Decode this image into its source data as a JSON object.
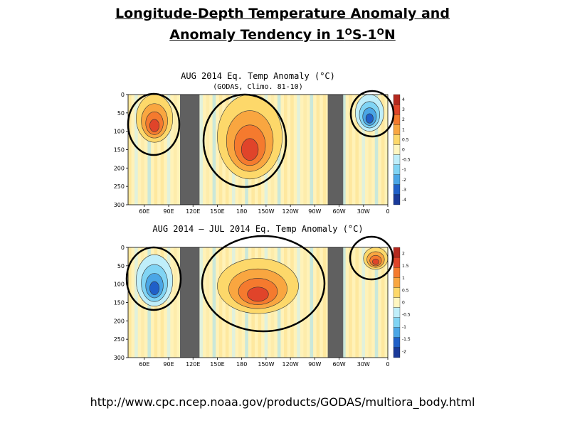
{
  "slide": {
    "title_line1": "Longitude-Depth Temperature Anomaly and",
    "title_line2_pre": "Anomaly Tendency in 1",
    "title_sup1": "O",
    "title_mid": "S-1",
    "title_sup2": "O",
    "title_post": "N",
    "source_url": "http://www.cpc.ncep.noaa.gov/products/GODAS/multiora_body.html"
  },
  "chart_data": [
    {
      "type": "heatmap",
      "title": "AUG 2014 Eq. Temp Anomaly (°C)",
      "subtitle": "(GODAS, Climo. 81-10)",
      "x_tick_labels": [
        "60E",
        "90E",
        "120E",
        "150E",
        "180",
        "150W",
        "120W",
        "90W",
        "60W",
        "30W",
        "0"
      ],
      "y_tick_labels": [
        "0",
        "50",
        "100",
        "150",
        "200",
        "250",
        "300"
      ],
      "ylim": [
        300,
        0
      ],
      "colorbar_labels": [
        "4",
        "3",
        "2",
        "1",
        "0.5",
        "0",
        "-0.5",
        "-1",
        "-2",
        "-3",
        "-4"
      ],
      "colorbar_colors": [
        "#b4281e",
        "#e0442a",
        "#f57a2e",
        "#f9a640",
        "#fdd86a",
        "#fff6c0",
        "#bfeefa",
        "#80d4f4",
        "#4aa6e6",
        "#2060c8",
        "#1a3a9a"
      ],
      "land_bands": [
        [
          104,
          128
        ],
        [
          286,
          305
        ]
      ],
      "anomaly_regions": [
        {
          "lon_range": [
            50,
            95
          ],
          "depth_range": [
            0,
            130
          ],
          "sign": "warm",
          "peak": 3
        },
        {
          "lon_range": [
            150,
            230
          ],
          "depth_range": [
            0,
            230
          ],
          "sign": "warm",
          "peak": 2
        },
        {
          "lon_range": [
            320,
            355
          ],
          "depth_range": [
            0,
            100
          ],
          "sign": "cool",
          "peak": -2
        }
      ],
      "highlight_circles": 3
    },
    {
      "type": "heatmap",
      "title": "AUG 2014 – JUL 2014 Eq. Temp Anomaly (°C)",
      "x_tick_labels": [
        "60E",
        "90E",
        "120E",
        "150E",
        "180",
        "150W",
        "120W",
        "90W",
        "60W",
        "30W",
        "0"
      ],
      "y_tick_labels": [
        "0",
        "50",
        "100",
        "150",
        "200",
        "250",
        "300"
      ],
      "ylim": [
        300,
        0
      ],
      "colorbar_labels": [
        "2",
        "1.5",
        "1",
        "0.5",
        "0",
        "-0.5",
        "-1",
        "-1.5",
        "-2"
      ],
      "colorbar_colors": [
        "#b4281e",
        "#e0442a",
        "#f57a2e",
        "#f9a640",
        "#fdd86a",
        "#fff6c0",
        "#bfeefa",
        "#80d4f4",
        "#4aa6e6",
        "#2060c8",
        "#1a3a9a"
      ],
      "land_bands": [
        [
          104,
          128
        ],
        [
          286,
          305
        ]
      ],
      "anomaly_regions": [
        {
          "lon_range": [
            50,
            95
          ],
          "depth_range": [
            20,
            160
          ],
          "sign": "cool",
          "peak": -1
        },
        {
          "lon_range": [
            150,
            250
          ],
          "depth_range": [
            30,
            180
          ],
          "sign": "warm",
          "peak": 1.5
        },
        {
          "lon_range": [
            330,
            360
          ],
          "depth_range": [
            0,
            60
          ],
          "sign": "warm",
          "peak": 1
        }
      ],
      "highlight_circles": 3
    }
  ]
}
